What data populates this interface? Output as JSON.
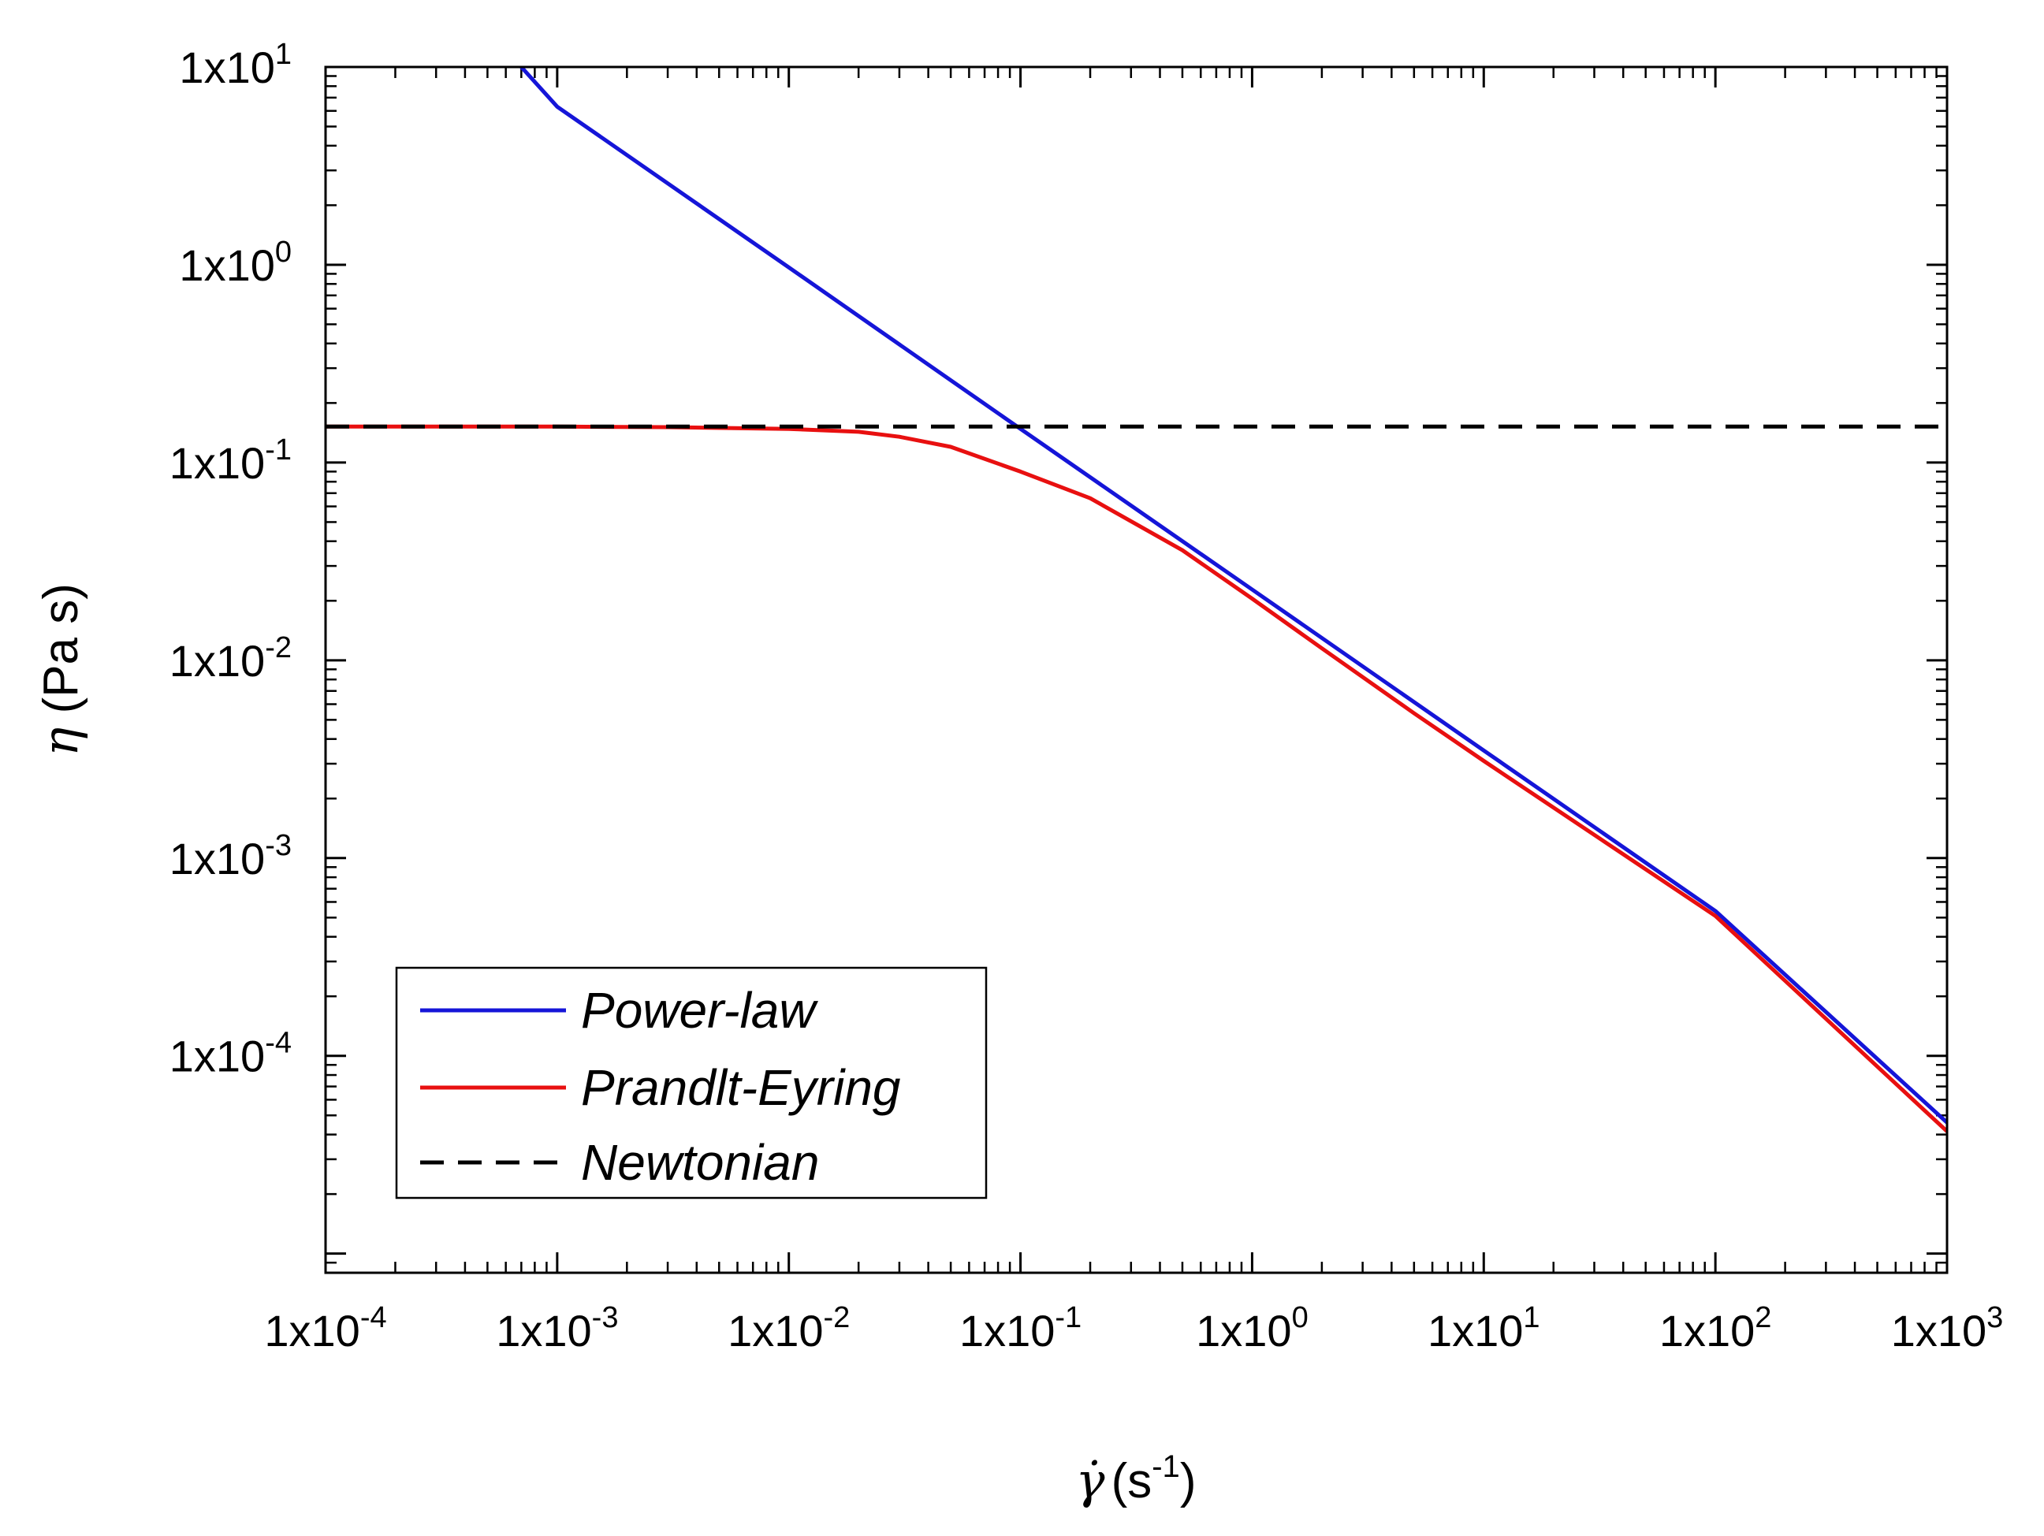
{
  "chart_data": {
    "type": "line",
    "x_scale": "log",
    "y_scale": "log",
    "xlim": [
      0.0001,
      1000
    ],
    "ylim": [
      8e-06,
      10
    ],
    "x_ticks": [
      {
        "value": 0.0001,
        "mantissa": "1x10",
        "exponent": "-4"
      },
      {
        "value": 0.001,
        "mantissa": "1x10",
        "exponent": "-3"
      },
      {
        "value": 0.01,
        "mantissa": "1x10",
        "exponent": "-2"
      },
      {
        "value": 0.1,
        "mantissa": "1x10",
        "exponent": "-1"
      },
      {
        "value": 1,
        "mantissa": "1x10",
        "exponent": "0"
      },
      {
        "value": 10,
        "mantissa": "1x10",
        "exponent": "1"
      },
      {
        "value": 100,
        "mantissa": "1x10",
        "exponent": "2"
      },
      {
        "value": 1000,
        "mantissa": "1x10",
        "exponent": "3"
      }
    ],
    "y_ticks": [
      {
        "value": 0.0001,
        "mantissa": "1x10",
        "exponent": "-4"
      },
      {
        "value": 0.001,
        "mantissa": "1x10",
        "exponent": "-3"
      },
      {
        "value": 0.01,
        "mantissa": "1x10",
        "exponent": "-2"
      },
      {
        "value": 0.1,
        "mantissa": "1x10",
        "exponent": "-1"
      },
      {
        "value": 1,
        "mantissa": "1x10",
        "exponent": "0"
      },
      {
        "value": 10,
        "mantissa": "1x10",
        "exponent": "1"
      }
    ],
    "xlabel": {
      "symbol": "γ̇",
      "text": "(s",
      "exponent": "-1",
      "close": ")"
    },
    "ylabel": {
      "symbol": "η",
      "text": " (Pa s)"
    },
    "series": [
      {
        "name": "Power-law",
        "color": "#1515d8",
        "style": "solid",
        "x": [
          0.0007,
          0.001,
          0.01,
          0.1,
          1,
          10,
          100,
          1000
        ],
        "y": [
          10,
          6.3,
          0.97,
          0.148,
          0.0228,
          0.0035,
          0.00054,
          4.6e-05
        ]
      },
      {
        "name": "Prandlt-Eyring",
        "color": "#e81010",
        "style": "solid",
        "x": [
          0.0001,
          0.001,
          0.003,
          0.01,
          0.02,
          0.03,
          0.05,
          0.1,
          0.2,
          0.5,
          1,
          2,
          5,
          10,
          100,
          1000
        ],
        "y": [
          0.152,
          0.152,
          0.151,
          0.148,
          0.143,
          0.135,
          0.12,
          0.09,
          0.066,
          0.036,
          0.0205,
          0.0115,
          0.0054,
          0.0031,
          0.00051,
          4.15e-05
        ]
      },
      {
        "name": "Newtonian",
        "color": "#000000",
        "style": "dashed",
        "x": [
          0.0001,
          1000
        ],
        "y": [
          0.152,
          0.152
        ]
      }
    ],
    "legend": {
      "placement": "bottom-left"
    }
  }
}
